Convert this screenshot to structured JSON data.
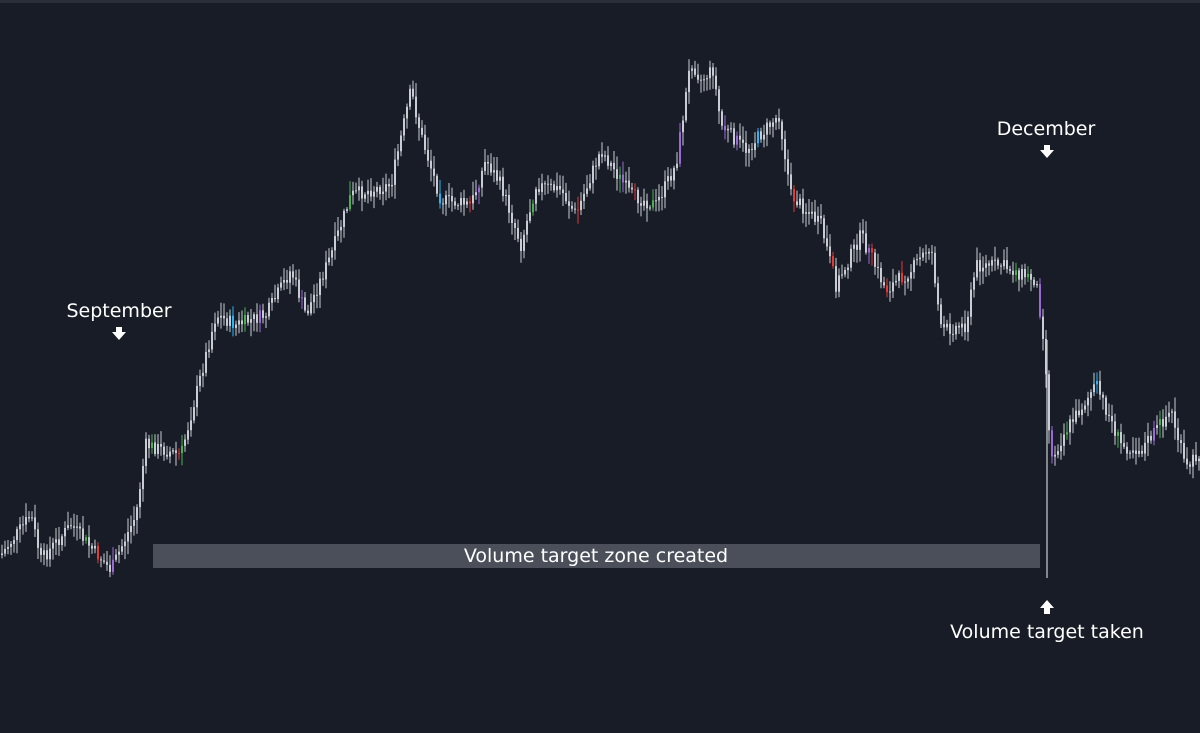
{
  "chart_data": {
    "type": "candlestick",
    "title": "",
    "xlabel": "",
    "ylabel": "",
    "grid": false,
    "legend": "none",
    "path": [
      [
        0,
        555
      ],
      [
        30,
        515
      ],
      [
        40,
        560
      ],
      [
        70,
        525
      ],
      [
        110,
        570
      ],
      [
        135,
        515
      ],
      [
        145,
        445
      ],
      [
        180,
        455
      ],
      [
        215,
        315
      ],
      [
        235,
        325
      ],
      [
        265,
        315
      ],
      [
        290,
        270
      ],
      [
        305,
        315
      ],
      [
        330,
        255
      ],
      [
        350,
        195
      ],
      [
        390,
        185
      ],
      [
        410,
        90
      ],
      [
        420,
        135
      ],
      [
        440,
        200
      ],
      [
        470,
        205
      ],
      [
        485,
        160
      ],
      [
        500,
        185
      ],
      [
        520,
        245
      ],
      [
        535,
        185
      ],
      [
        560,
        190
      ],
      [
        575,
        215
      ],
      [
        600,
        150
      ],
      [
        630,
        195
      ],
      [
        655,
        205
      ],
      [
        675,
        165
      ],
      [
        690,
        60
      ],
      [
        700,
        80
      ],
      [
        712,
        70
      ],
      [
        720,
        125
      ],
      [
        745,
        150
      ],
      [
        778,
        115
      ],
      [
        790,
        195
      ],
      [
        820,
        225
      ],
      [
        835,
        285
      ],
      [
        860,
        235
      ],
      [
        885,
        290
      ],
      [
        910,
        270
      ],
      [
        930,
        245
      ],
      [
        940,
        330
      ],
      [
        965,
        325
      ],
      [
        975,
        265
      ],
      [
        1000,
        265
      ],
      [
        1035,
        280
      ],
      [
        1043,
        340
      ],
      [
        1050,
        460
      ],
      [
        1065,
        430
      ],
      [
        1095,
        385
      ],
      [
        1120,
        445
      ],
      [
        1140,
        450
      ],
      [
        1170,
        410
      ],
      [
        1185,
        470
      ],
      [
        1200,
        450
      ]
    ],
    "colors": {
      "background": "#181c26",
      "candle_default": "#c9ccd3",
      "up_highlight": "#4caf50",
      "down_highlight": "#e53935",
      "alt_blue": "#29b6f6",
      "alt_purple": "#9c6ad6",
      "zone_fill": "#4a4f59",
      "text": "#ffffff"
    }
  },
  "annotations": {
    "september": "September",
    "december": "December",
    "volume_taken": "Volume target taken",
    "zone_label": "Volume target zone created"
  }
}
